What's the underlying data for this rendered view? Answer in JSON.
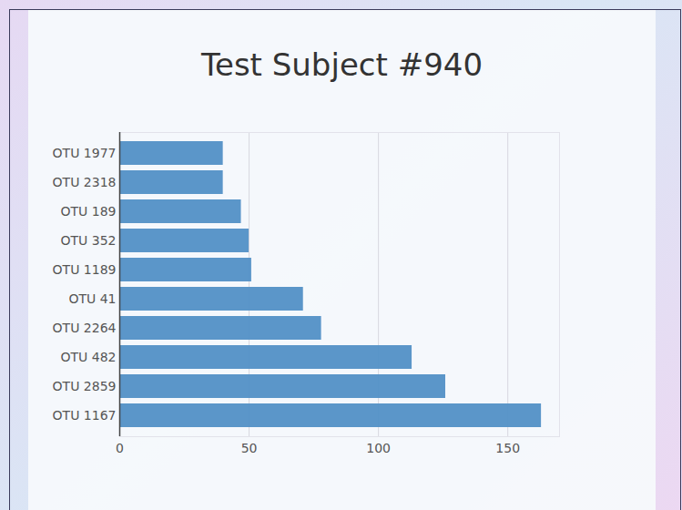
{
  "chart_data": {
    "type": "bar",
    "title": "Test Subject #940",
    "orientation": "horizontal",
    "categories": [
      "OTU 1977",
      "OTU 2318",
      "OTU 189",
      "OTU 352",
      "OTU 1189",
      "OTU 41",
      "OTU 2264",
      "OTU 482",
      "OTU 2859",
      "OTU 1167"
    ],
    "values": [
      40,
      40,
      47,
      50,
      51,
      71,
      78,
      113,
      126,
      163
    ],
    "color": "#5290c6",
    "xlim": [
      0,
      170
    ],
    "xticks": [
      0,
      50,
      100,
      150
    ],
    "grid": true
  }
}
